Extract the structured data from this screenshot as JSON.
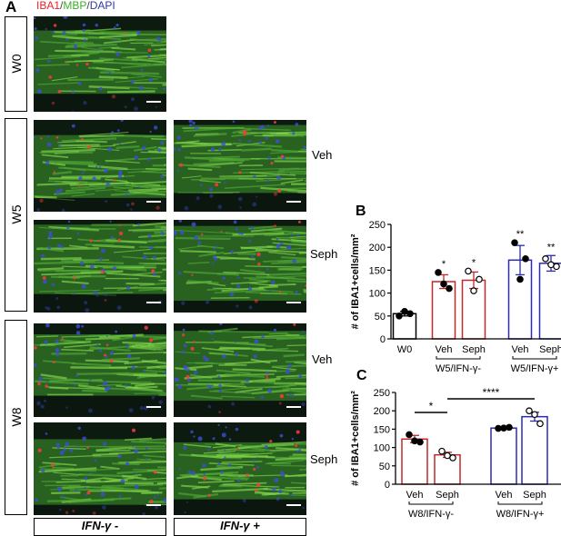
{
  "panel_a": {
    "letter": "A",
    "stains": {
      "iba1": "IBA1",
      "sep1": "/",
      "mbp": "MBP",
      "sep2": "/",
      "dapi": "DAPI"
    },
    "stain_colors": {
      "iba1": "#e8202a",
      "mbp": "#3fae2a",
      "dapi": "#2b3aa8"
    },
    "time_labels": [
      "W0",
      "W5",
      "W8"
    ],
    "treatment_labels": [
      "Veh",
      "Seph",
      "Veh",
      "Seph"
    ],
    "condition_labels": [
      "IFN-γ -",
      "IFN-γ +"
    ]
  },
  "chart_data": [
    {
      "panel": "B",
      "type": "bar",
      "ylabel": "# of IBA1+cells/mm²",
      "ylim": [
        0,
        250
      ],
      "yticks": [
        0,
        50,
        100,
        150,
        200,
        250
      ],
      "categories": [
        "W0",
        "Veh",
        "Seph",
        "Veh",
        "Seph"
      ],
      "group_labels": [
        "",
        "W5/IFN-γ-",
        "W5/IFN-γ+"
      ],
      "values": [
        55,
        125,
        128,
        172,
        165
      ],
      "errors": [
        5,
        15,
        18,
        32,
        17
      ],
      "colors": [
        "#000000",
        "#c0282a",
        "#c0282a",
        "#2a2ab8",
        "#2a2ab8"
      ],
      "points": [
        [
          50,
          60,
          55
        ],
        [
          145,
          120,
          110
        ],
        [
          148,
          105,
          130
        ],
        [
          210,
          130,
          175
        ],
        [
          175,
          162,
          158
        ]
      ],
      "significance": [
        "",
        "*",
        "*",
        "**",
        "**"
      ]
    },
    {
      "panel": "C",
      "type": "bar",
      "ylabel": "# of IBA1+cells/mm²",
      "ylim": [
        0,
        250
      ],
      "yticks": [
        0,
        50,
        100,
        150,
        200,
        250
      ],
      "categories": [
        "Veh",
        "Seph",
        "Veh",
        "Seph"
      ],
      "group_labels": [
        "W8/IFN-γ-",
        "W8/IFN-γ+"
      ],
      "values": [
        123,
        80,
        153,
        184
      ],
      "errors": [
        10,
        7,
        3,
        12
      ],
      "colors": [
        "#c0282a",
        "#c0282a",
        "#2a2ab8",
        "#2a2ab8"
      ],
      "points": [
        [
          135,
          118,
          115
        ],
        [
          90,
          78,
          72
        ],
        [
          152,
          153,
          155
        ],
        [
          200,
          190,
          165
        ]
      ],
      "comparisons": [
        {
          "from": 0,
          "to": 1,
          "label": "*"
        },
        {
          "from": 1,
          "to": 3,
          "label": "****"
        }
      ]
    }
  ]
}
